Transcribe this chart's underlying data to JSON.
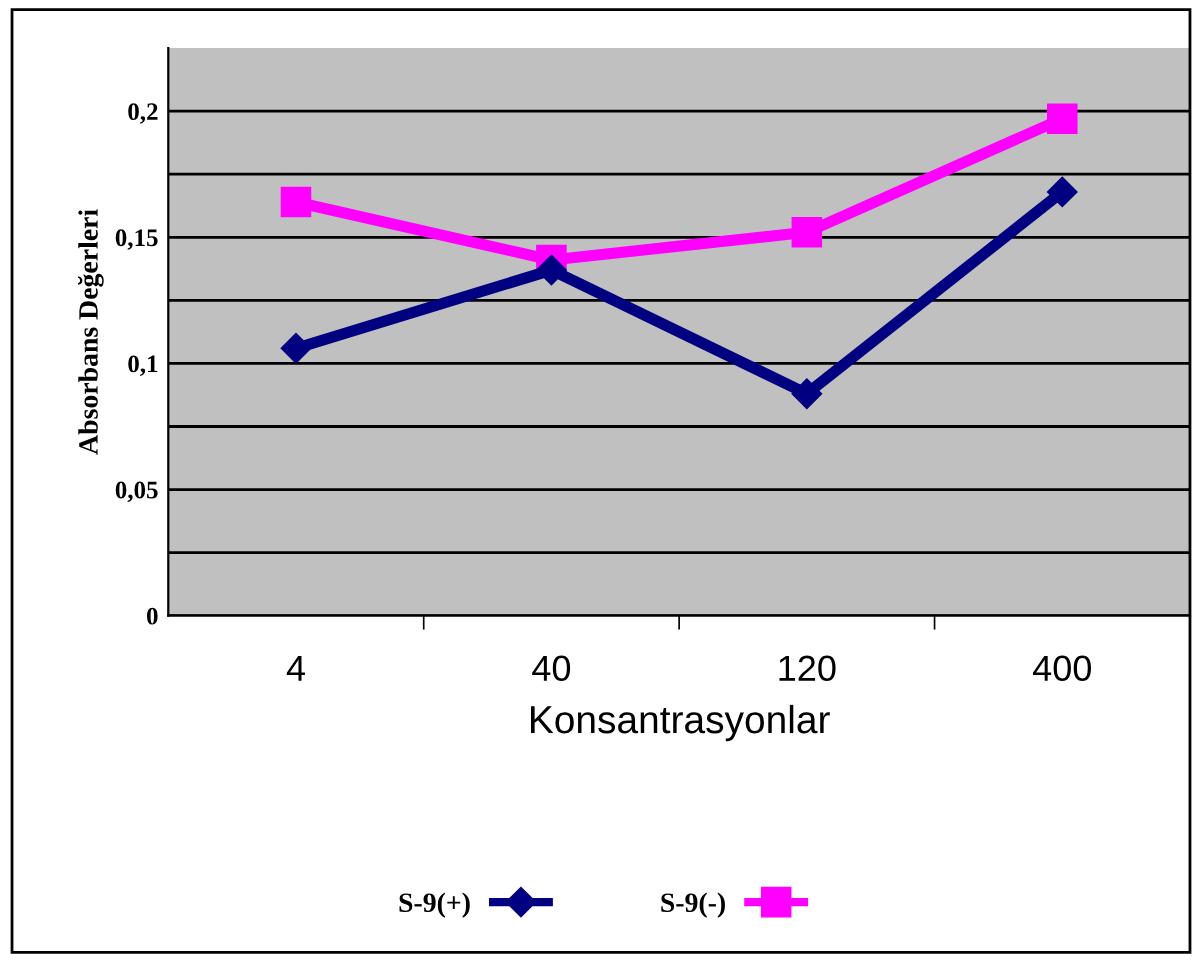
{
  "chart_data": {
    "type": "line",
    "xlabel": "Konsantrasyonlar",
    "ylabel": "Absorbans Değerleri",
    "categories": [
      "4",
      "40",
      "120",
      "400"
    ],
    "series": [
      {
        "name": "S-9(+)",
        "color": "#000080",
        "marker": "diamond",
        "values": [
          0.106,
          0.137,
          0.088,
          0.168
        ]
      },
      {
        "name": "S-9(-)",
        "color": "#ff00ff",
        "marker": "square",
        "values": [
          0.164,
          0.141,
          0.152,
          0.197
        ]
      }
    ],
    "ylim": [
      0,
      0.225
    ],
    "yticks": [
      0,
      {
        "value": 0.025,
        "label": null
      },
      {
        "value": 0.05,
        "label": "0,05"
      },
      {
        "value": 0.075,
        "label": null
      },
      {
        "value": 0.1,
        "label": "0,1"
      },
      {
        "value": 0.125,
        "label": null
      },
      {
        "value": 0.15,
        "label": "0,15"
      },
      {
        "value": 0.175,
        "label": null
      },
      {
        "value": 0.2,
        "label": "0,2"
      }
    ],
    "grid": "y",
    "legend": "bottom"
  }
}
